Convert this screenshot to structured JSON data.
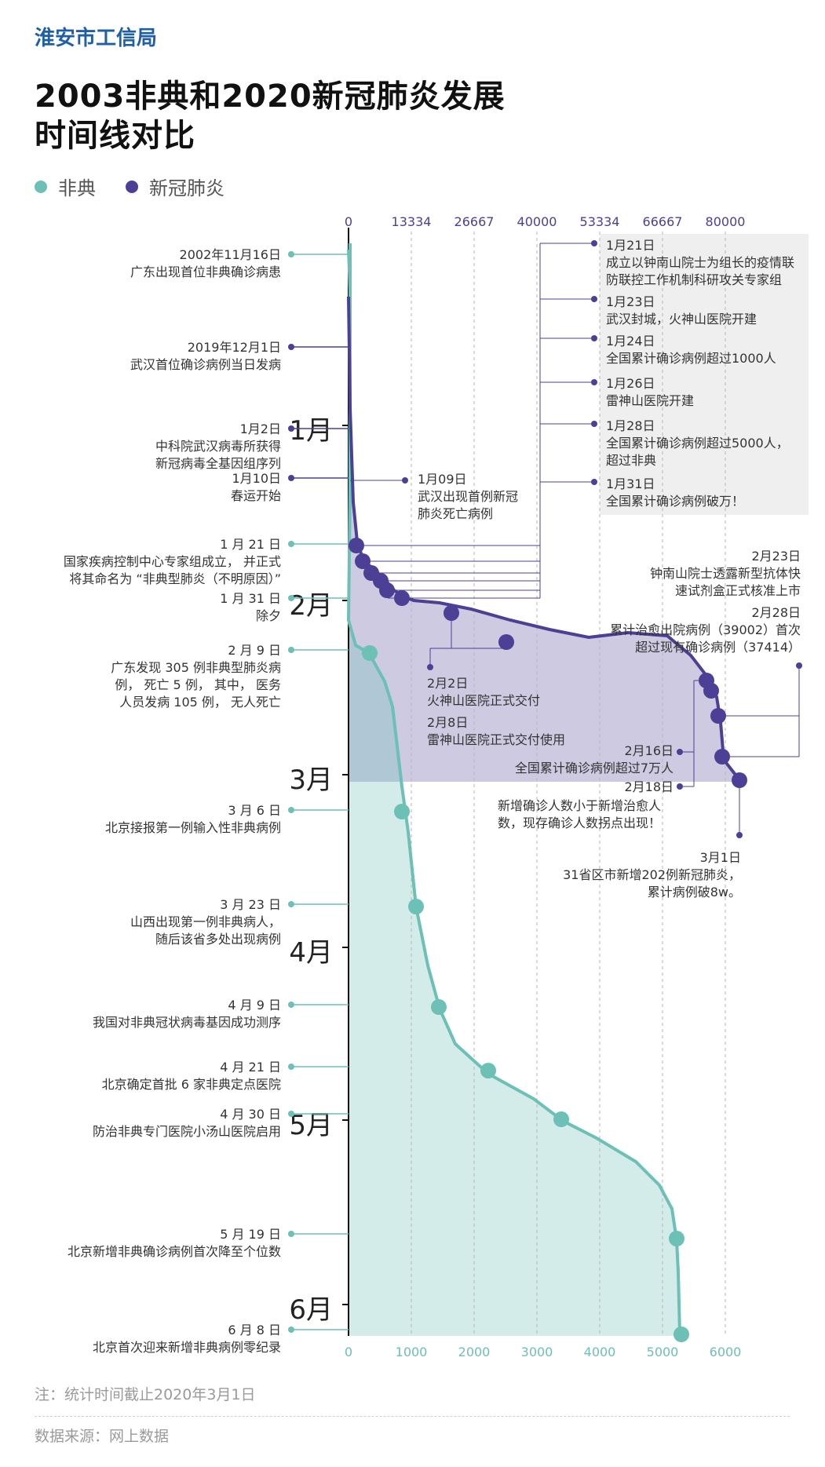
{
  "header": {
    "org": "淮安市工信局",
    "title_line1": "2003非典和2020新冠肺炎发展",
    "title_line2": "时间线对比"
  },
  "legend": [
    {
      "label": "非典",
      "color": "#6dc0b6"
    },
    {
      "label": "新冠肺炎",
      "color": "#4b3f96"
    }
  ],
  "footer": {
    "note": "注：统计时间截止2020年3月1日",
    "source": "数据来源：网上数据"
  },
  "chart_data": {
    "type": "line",
    "top_axis": {
      "series": "新冠肺炎",
      "ticks": [
        "0",
        "13334",
        "26667",
        "40000",
        "53334",
        "66667",
        "80000"
      ],
      "values": [
        0,
        13334,
        26667,
        40000,
        53334,
        66667,
        80000
      ]
    },
    "bottom_axis": {
      "series": "非典",
      "ticks": [
        "0",
        "1000",
        "2000",
        "3000",
        "4000",
        "5000",
        "6000"
      ],
      "values": [
        0,
        1000,
        2000,
        3000,
        4000,
        5000,
        6000
      ]
    },
    "months": [
      "1月",
      "2月",
      "3月",
      "4月",
      "5月",
      "6月"
    ],
    "series": [
      {
        "name": "非典",
        "color": "#6dc0b6",
        "points": [
          {
            "date": "2月 9 日",
            "value": 350
          },
          {
            "date": "3 月 6 日",
            "value": 870
          },
          {
            "date": "3 月 23 日",
            "value": 1100
          },
          {
            "date": "4 月 9 日",
            "value": 1450
          },
          {
            "date": "4 月 21 日",
            "value": 2250
          },
          {
            "date": "4 月 30 日",
            "value": 3400
          },
          {
            "date": "5 月 19 日",
            "value": 5200
          },
          {
            "date": "6 月 8 日",
            "value": 5300
          }
        ]
      },
      {
        "name": "新冠肺炎",
        "color": "#4b3f96",
        "points": [
          {
            "date": "1月21日",
            "value": 1500
          },
          {
            "date": "1月23日",
            "value": 3000
          },
          {
            "date": "1月24日",
            "value": 4800
          },
          {
            "date": "1月26日",
            "value": 7000
          },
          {
            "date": "1月28日",
            "value": 8200
          },
          {
            "date": "1月31日",
            "value": 11800
          },
          {
            "date": "2月2日",
            "value": 22000
          },
          {
            "date": "2月8日",
            "value": 33500
          },
          {
            "date": "2月16日",
            "value": 75300
          },
          {
            "date": "2月18日",
            "value": 76500
          },
          {
            "date": "2月23日",
            "value": 78300
          },
          {
            "date": "2月28日",
            "value": 78700
          },
          {
            "date": "3月1日",
            "value": 82800
          }
        ]
      }
    ],
    "events_left": [
      {
        "date": "2002年11月16日",
        "text": "广东出现首位非典确诊病患",
        "series": "非典"
      },
      {
        "date": "2019年12月1日",
        "text": "武汉首位确诊病例当日发病",
        "series": "新冠肺炎"
      },
      {
        "date": "1月2日",
        "text": "中科院武汉病毒所获得\n新冠病毒全基因组序列",
        "series": "新冠肺炎"
      },
      {
        "date": "1月10日",
        "text": "春运开始",
        "series": "新冠肺炎"
      },
      {
        "date": "1 月 21 日",
        "text": "国家疾病控制中心专家组成立， 并正式\n将其命名为 “非典型肺炎（不明原因）”",
        "series": "非典"
      },
      {
        "date": "1 月 31 日",
        "text": "除夕",
        "series": "非典"
      },
      {
        "date": "2 月 9 日",
        "text": "广东发现  305  例非典型肺炎病\n例，  死亡 5 例，  其中，  医务\n人员发病 105 例，  无人死亡",
        "series": "非典"
      },
      {
        "date": "3 月 6 日",
        "text": "北京接报第一例输入性非典病例",
        "series": "非典"
      },
      {
        "date": "3 月 23 日",
        "text": "山西出现第一例非典病人，\n随后该省多处出现病例",
        "series": "非典"
      },
      {
        "date": "4 月 9 日",
        "text": "我国对非典冠状病毒基因成功测序",
        "series": "非典"
      },
      {
        "date": "4 月 21 日",
        "text": "北京确定首批 6 家非典定点医院",
        "series": "非典"
      },
      {
        "date": "4 月 30 日",
        "text": "防治非典专门医院小汤山医院启用",
        "series": "非典"
      },
      {
        "date": "5 月 19 日",
        "text": "北京新增非典确诊病例首次降至个位数",
        "series": "非典"
      },
      {
        "date": "6 月 8 日",
        "text": "北京首次迎来新增非典病例零纪录",
        "series": "非典"
      }
    ],
    "events_right_box": [
      {
        "date": "1月21日",
        "text": "成立以钟南山院士为组长的疫情联\n防联控工作机制科研攻关专家组"
      },
      {
        "date": "1月23日",
        "text": "武汉封城，火神山医院开建"
      },
      {
        "date": "1月24日",
        "text": "全国累计确诊病例超过1000人"
      },
      {
        "date": "1月26日",
        "text": "雷神山医院开建"
      },
      {
        "date": "1月28日",
        "text": "全国累计确诊病例超过5000人，\n超过非典"
      },
      {
        "date": "1月31日",
        "text": "全国累计确诊病例破万！"
      }
    ],
    "events_mid": [
      {
        "date": "1月09日",
        "text": "武汉出现首例新冠\n肺炎死亡病例"
      },
      {
        "date": "2月2日",
        "text": "火神山医院正式交付"
      },
      {
        "date": "2月8日",
        "text": "雷神山医院正式交付使用"
      },
      {
        "date": "2月16日",
        "text": "全国累计确诊病例超过7万人"
      },
      {
        "date": "2月18日",
        "text": "新增确诊人数小于新增治愈人\n数，现存确诊人数拐点出现！"
      },
      {
        "date": "2月23日",
        "text": "钟南山院士透露新型抗体快\n速试剂盒正式核准上市"
      },
      {
        "date": "2月28日",
        "text": "累计治愈出院病例（39002）首次\n超过现有确诊病例（37414）"
      },
      {
        "date": "3月1日",
        "text": "31省区市新增202例新冠肺炎，\n累计病例破8w。"
      }
    ]
  }
}
